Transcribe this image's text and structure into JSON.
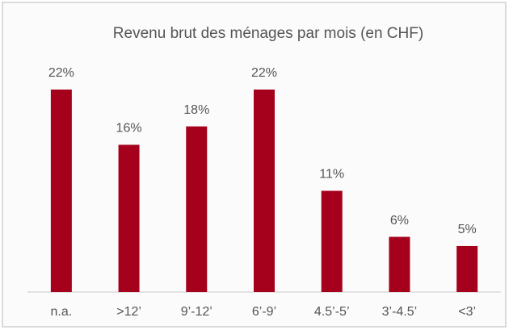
{
  "chart_data": {
    "type": "bar",
    "title": "Revenu brut des ménages par mois (en CHF)",
    "categories": [
      "n.a.",
      ">12’",
      "9’-12’",
      "6’-9’",
      "4.5’-5’",
      "3’-4.5’",
      "<3’"
    ],
    "values": [
      22,
      16,
      18,
      22,
      11,
      6,
      5
    ],
    "value_labels": [
      "22%",
      "16%",
      "18%",
      "22%",
      "11%",
      "6%",
      "5%"
    ],
    "color": "#a5001c"
  }
}
